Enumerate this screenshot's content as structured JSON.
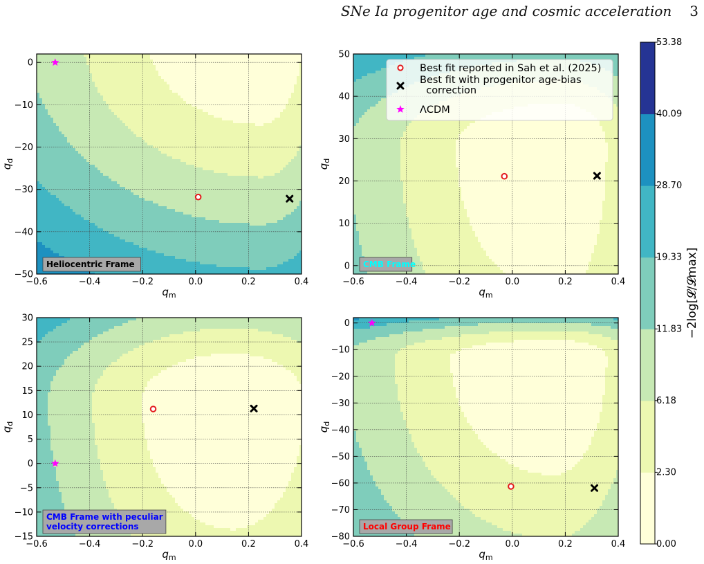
{
  "running_head": {
    "title": "SNe Ia progenitor age and cosmic acceleration",
    "page_number": "3"
  },
  "colors": {
    "levels": [
      "#ffffd9",
      "#edf8b1",
      "#c7e9b4",
      "#7fcdbb",
      "#41b6c4",
      "#1d91c0",
      "#253494"
    ],
    "best_fit_reported": "#e31a1c",
    "best_fit_corrected": "#000000",
    "lcdm": "#ff00ff",
    "label_box": "#a8a8a8"
  },
  "colorbar": {
    "label": "−2log[𝓛/𝓛max]",
    "boundaries": [
      0.0,
      2.3,
      6.18,
      11.83,
      19.33,
      28.7,
      40.09,
      53.38
    ],
    "tick_labels": [
      "0.00",
      "2.30",
      "6.18",
      "11.83",
      "19.33",
      "28.70",
      "40.09",
      "53.38"
    ]
  },
  "legend": {
    "placement": "upper-right of top-right panel",
    "entries": [
      {
        "marker": "open-circle",
        "label": "Best fit reported in Sah et al. (2025)"
      },
      {
        "marker": "x",
        "label": "Best fit with progenitor age-bias\n  correction"
      },
      {
        "marker": "star",
        "label": "ΛCDM"
      }
    ]
  },
  "chart_data": [
    {
      "type": "contour",
      "panel": "top-left",
      "frame_label": "Heliocentric Frame",
      "frame_label_color": "#000000",
      "xlabel": "q_m",
      "ylabel": "q_d",
      "xlim": [
        -0.6,
        0.4
      ],
      "ylim": [
        -50,
        2
      ],
      "xticks": [
        -0.6,
        -0.4,
        -0.2,
        0.0,
        0.2,
        0.4
      ],
      "xtick_labels": [
        "−0.6",
        "−0.4",
        "−0.2",
        "0.0",
        "0.2",
        "0.4"
      ],
      "yticks": [
        -50,
        -40,
        -30,
        -20,
        -10,
        0
      ],
      "ytick_labels": [
        "−50",
        "−40",
        "−30",
        "−20",
        "−10",
        "0"
      ],
      "grid": true,
      "best_fit_reported": [
        0.01,
        -31.8
      ],
      "best_fit_corrected": [
        0.355,
        -32.2
      ],
      "lcdm": [
        -0.53,
        0.0
      ]
    },
    {
      "type": "contour",
      "panel": "top-right",
      "frame_label": "CMB Frame",
      "frame_label_color": "#00ffff",
      "xlabel": "q_m",
      "ylabel": "q_d",
      "xlim": [
        -0.6,
        0.4
      ],
      "ylim": [
        -2,
        50
      ],
      "xticks": [
        -0.6,
        -0.4,
        -0.2,
        0.0,
        0.2,
        0.4
      ],
      "xtick_labels": [
        "−0.6",
        "−0.4",
        "−0.2",
        "0.0",
        "0.2",
        "0.4"
      ],
      "yticks": [
        0,
        10,
        20,
        30,
        40,
        50
      ],
      "ytick_labels": [
        "0",
        "10",
        "20",
        "30",
        "40",
        "50"
      ],
      "grid": true,
      "best_fit_reported": [
        -0.03,
        21.1
      ],
      "best_fit_corrected": [
        0.32,
        21.2
      ],
      "lcdm": [
        -0.53,
        0.0
      ]
    },
    {
      "type": "contour",
      "panel": "bottom-left",
      "frame_label": "CMB Frame with peculiar\nvelocity corrections",
      "frame_label_color": "#0000ff",
      "xlabel": "q_m",
      "ylabel": "q_d",
      "xlim": [
        -0.6,
        0.4
      ],
      "ylim": [
        -15,
        30
      ],
      "xticks": [
        -0.6,
        -0.4,
        -0.2,
        0.0,
        0.2,
        0.4
      ],
      "xtick_labels": [
        "−0.6",
        "−0.4",
        "−0.2",
        "0.0",
        "0.2",
        "0.4"
      ],
      "yticks": [
        -15,
        -10,
        -5,
        0,
        5,
        10,
        15,
        20,
        25,
        30
      ],
      "ytick_labels": [
        "−15",
        "−10",
        "−5",
        "0",
        "5",
        "10",
        "15",
        "20",
        "25",
        "30"
      ],
      "grid": true,
      "best_fit_reported": [
        -0.16,
        11.2
      ],
      "best_fit_corrected": [
        0.22,
        11.3
      ],
      "lcdm": [
        -0.53,
        0.0
      ]
    },
    {
      "type": "contour",
      "panel": "bottom-right",
      "frame_label": "Local Group Frame",
      "frame_label_color": "#ff0000",
      "xlabel": "q_m",
      "ylabel": "q_d",
      "xlim": [
        -0.6,
        0.4
      ],
      "ylim": [
        -80,
        2
      ],
      "xticks": [
        -0.6,
        -0.4,
        -0.2,
        0.0,
        0.2,
        0.4
      ],
      "xtick_labels": [
        "−0.6",
        "−0.4",
        "−0.2",
        "0.0",
        "0.2",
        "0.4"
      ],
      "yticks": [
        -80,
        -70,
        -60,
        -50,
        -40,
        -30,
        -20,
        -10,
        0
      ],
      "ytick_labels": [
        "−80",
        "−70",
        "−60",
        "−50",
        "−40",
        "−30",
        "−20",
        "−10",
        "0"
      ],
      "grid": true,
      "best_fit_reported": [
        -0.005,
        -61.3
      ],
      "best_fit_corrected": [
        0.31,
        -61.9
      ],
      "lcdm": [
        -0.53,
        0.0
      ]
    }
  ]
}
